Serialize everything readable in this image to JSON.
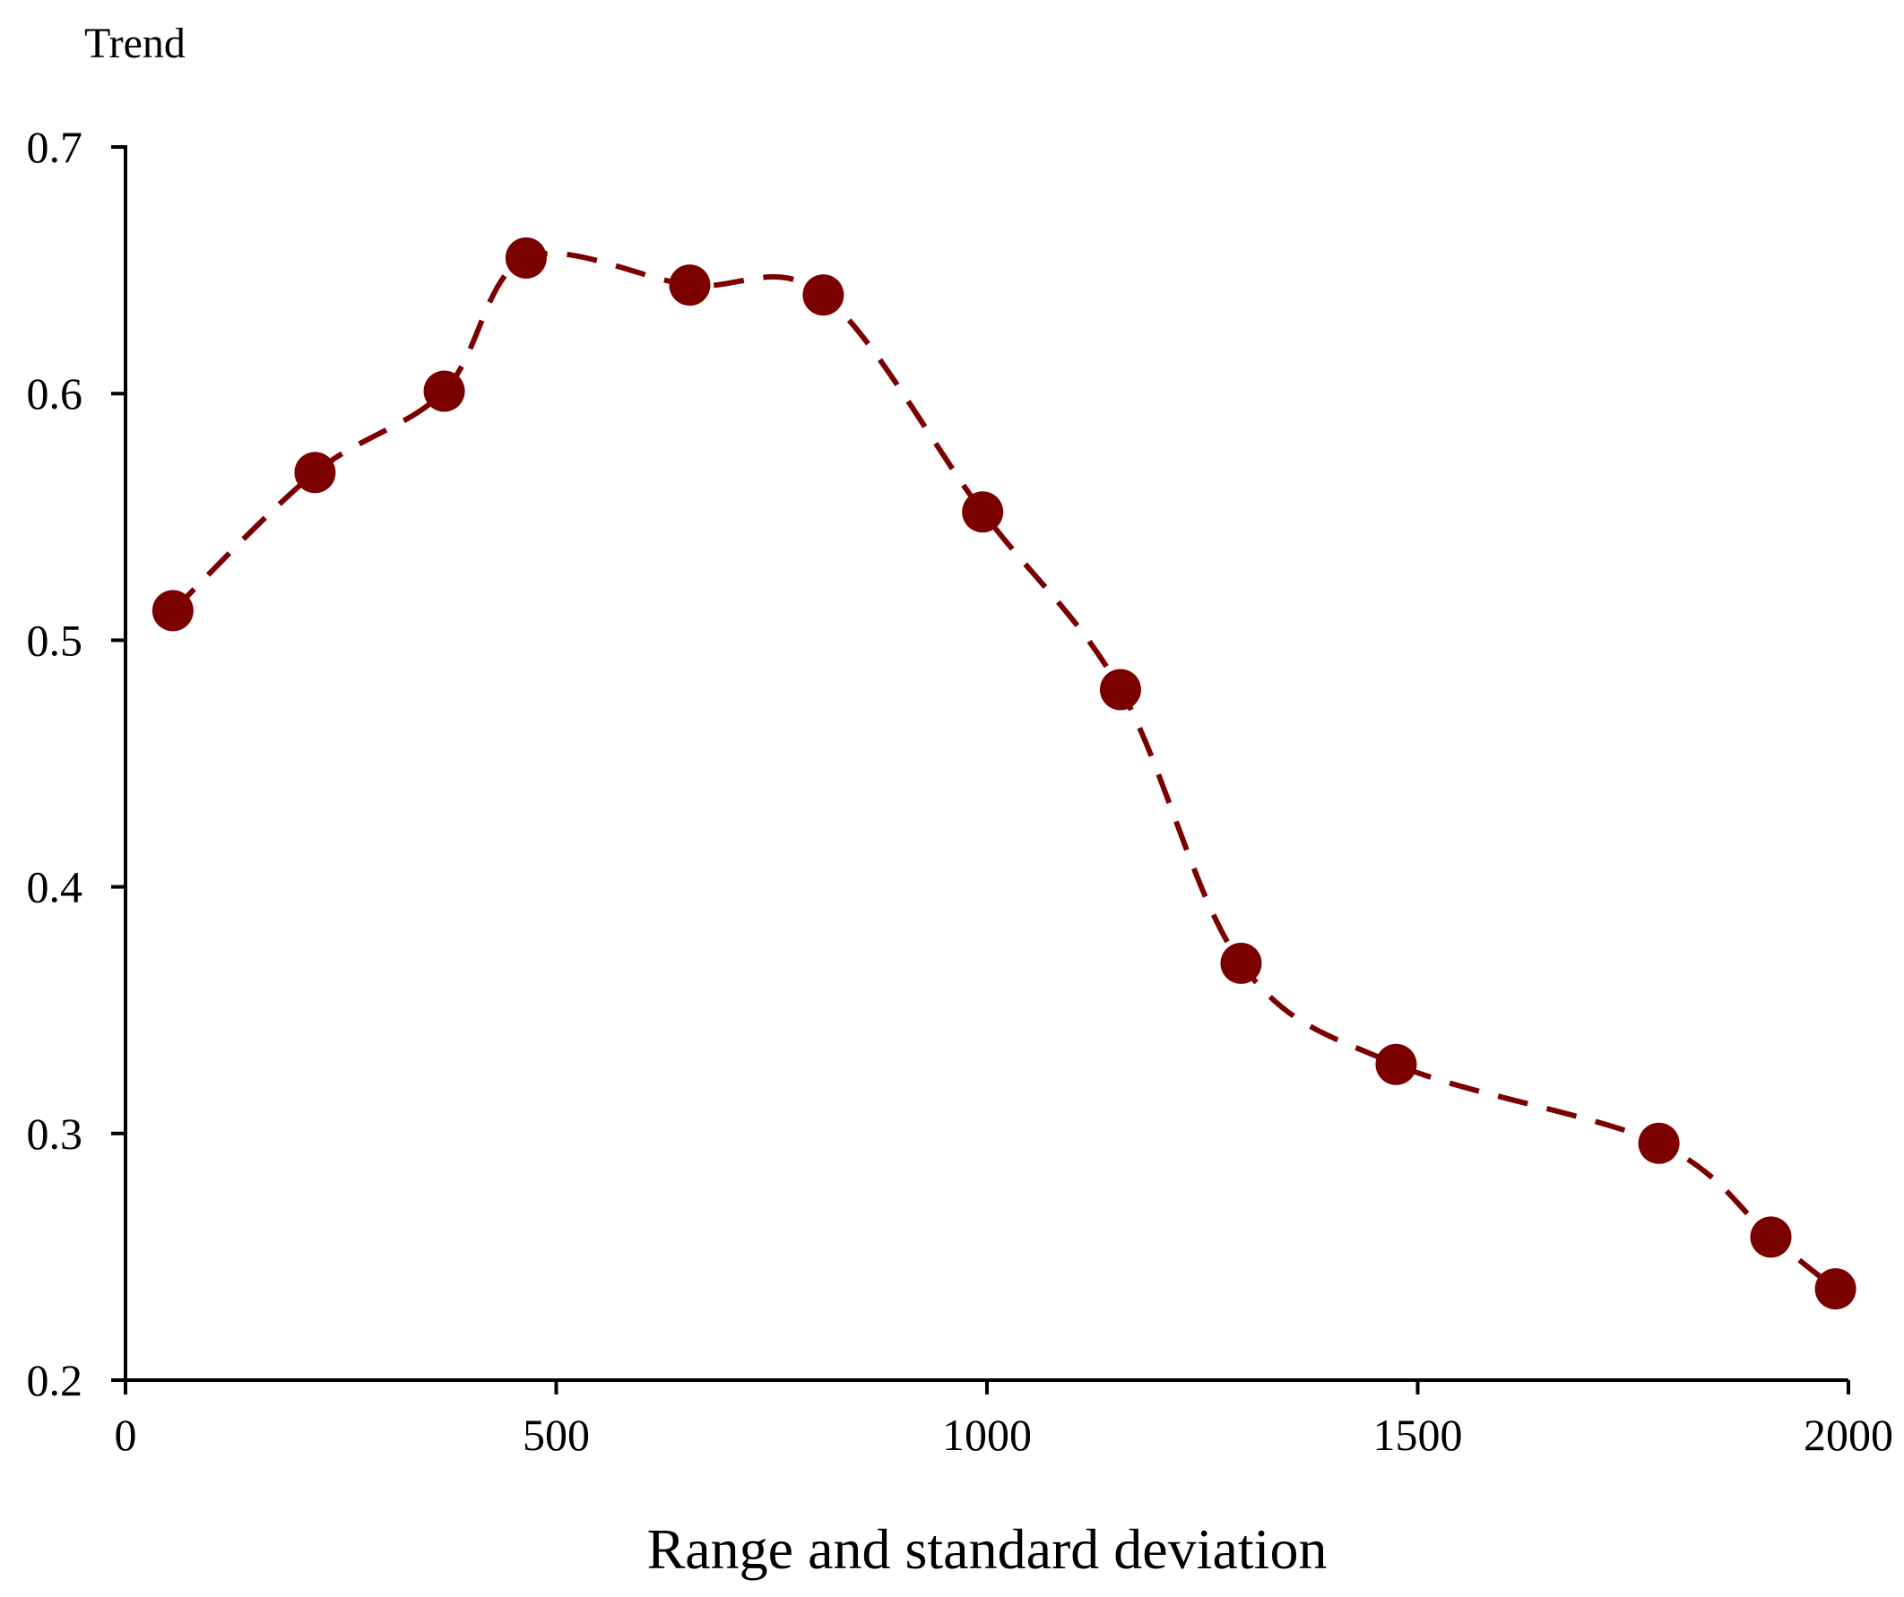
{
  "chart_data": {
    "type": "line",
    "title": "",
    "xlabel": "Range and standard deviation",
    "ylabel": "Trend",
    "xlim": [
      0,
      2000
    ],
    "ylim": [
      0.2,
      0.7
    ],
    "xticks": [
      0,
      500,
      1000,
      1500,
      2000
    ],
    "yticks": [
      0.2,
      0.3,
      0.4,
      0.5,
      0.6,
      0.7
    ],
    "xtick_labels": [
      "0",
      "500",
      "1000",
      "1500",
      "2000"
    ],
    "ytick_labels": [
      "0.2",
      "0.3",
      "0.4",
      "0.5",
      "0.6",
      "0.7"
    ],
    "grid": false,
    "line_style": "dashed, smoothed",
    "marker": "filled circle",
    "color": "#7b0000",
    "series": [
      {
        "name": "Trend",
        "x": [
          55,
          220,
          370,
          465,
          655,
          810,
          995,
          1155,
          1295,
          1475,
          1780,
          1910,
          1985
        ],
        "y": [
          0.512,
          0.568,
          0.601,
          0.655,
          0.644,
          0.64,
          0.552,
          0.48,
          0.369,
          0.328,
          0.296,
          0.258,
          0.237
        ]
      }
    ]
  }
}
